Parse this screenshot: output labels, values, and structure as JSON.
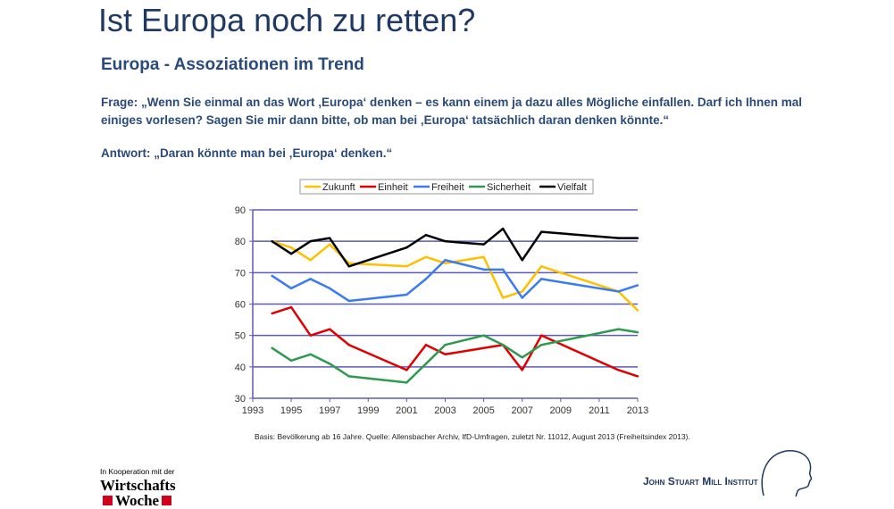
{
  "title": "Ist Europa noch zu retten?",
  "subtitle": "Europa - Assoziationen im Trend",
  "question": "Frage: „Wenn Sie einmal an das Wort ‚Europa‘ denken – es kann einem ja dazu alles Mögliche einfallen. Darf ich Ihnen mal einiges vorlesen? Sagen Sie mir dann bitte, ob man bei ‚Europa‘ tatsächlich daran denken könnte.“",
  "answer": "Antwort: „Daran könnte man bei ‚Europa‘ denken.“",
  "source": "Basis: Bevölkerung ab 16 Jahre. Quelle: Allensbacher Archiv, IfD-Umfragen, zuletzt Nr. 11012, August 2013 (Freiheitsindex 2013).",
  "cooperation": "In Kooperation mit der",
  "logo_ww": [
    "Wirtschafts",
    "Woche"
  ],
  "logo_jsm": "John Stuart Mill Institut",
  "chart_data": {
    "type": "line",
    "x": [
      1994,
      1995,
      1996,
      1997,
      1998,
      2001,
      2002,
      2003,
      2005,
      2006,
      2007,
      2008,
      2012,
      2013
    ],
    "xlim": [
      1993,
      2013
    ],
    "ylim": [
      30,
      90
    ],
    "xticks": [
      "1993",
      "1995",
      "1997",
      "1999",
      "2001",
      "2003",
      "2005",
      "2007",
      "2009",
      "2011",
      "2013"
    ],
    "yticks": [
      "30",
      "40",
      "50",
      "60",
      "70",
      "80",
      "90"
    ],
    "grid": true,
    "legend": "top",
    "series": [
      {
        "name": "Zukunft",
        "color": "#ffc000",
        "values": [
          80,
          78,
          74,
          79,
          73,
          72,
          75,
          73,
          75,
          62,
          64,
          72,
          64,
          58
        ]
      },
      {
        "name": "Einheit",
        "color": "#e00000",
        "values": [
          57,
          59,
          50,
          52,
          47,
          39,
          47,
          44,
          46,
          47,
          39,
          50,
          39,
          37
        ]
      },
      {
        "name": "Freiheit",
        "color": "#3a7bf0",
        "values": [
          69,
          65,
          68,
          65,
          61,
          63,
          68,
          74,
          71,
          71,
          62,
          68,
          64,
          66
        ]
      },
      {
        "name": "Sicherheit",
        "color": "#2e9a50",
        "values": [
          46,
          42,
          44,
          41,
          37,
          35,
          41,
          47,
          50,
          47,
          43,
          47,
          52,
          51
        ]
      },
      {
        "name": "Vielfalt",
        "color": "#000000",
        "values": [
          80,
          76,
          80,
          81,
          72,
          78,
          82,
          80,
          79,
          84,
          74,
          83,
          81,
          81
        ]
      }
    ]
  }
}
